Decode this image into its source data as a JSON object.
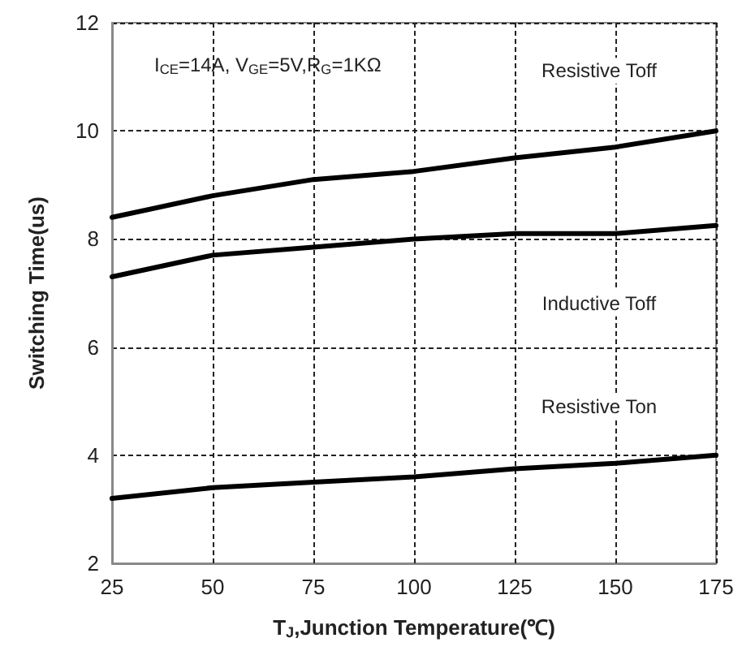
{
  "chart_data": {
    "type": "line",
    "xlabel": "T$_{J}$,Junction Temperature(℃)",
    "ylabel": "Switching Time(us)",
    "annotations": [
      "I$_{CE}$=14A, V$_{GE}$=5V,R$_{G}$=1KΩ"
    ],
    "x": [
      25,
      50,
      75,
      100,
      125,
      150,
      175
    ],
    "series": [
      {
        "name": "Resistive Toff",
        "color": "#000000",
        "values": [
          8.4,
          8.8,
          9.1,
          9.25,
          9.5,
          9.7,
          10.0
        ]
      },
      {
        "name": "Inductive Toff",
        "color": "#000000",
        "values": [
          7.3,
          7.7,
          7.85,
          8.0,
          8.1,
          8.1,
          8.25
        ]
      },
      {
        "name": "Resistive Ton",
        "color": "#000000",
        "values": [
          3.2,
          3.4,
          3.5,
          3.6,
          3.75,
          3.85,
          4.0
        ]
      }
    ],
    "xlim": [
      25,
      175
    ],
    "xticks": [
      25,
      50,
      75,
      100,
      125,
      150,
      175
    ],
    "ylim": [
      2,
      12
    ],
    "yticks": [
      2,
      4,
      6,
      8,
      10,
      12
    ],
    "grid": true,
    "legend": false,
    "marker": "none",
    "line_style": "solid"
  }
}
